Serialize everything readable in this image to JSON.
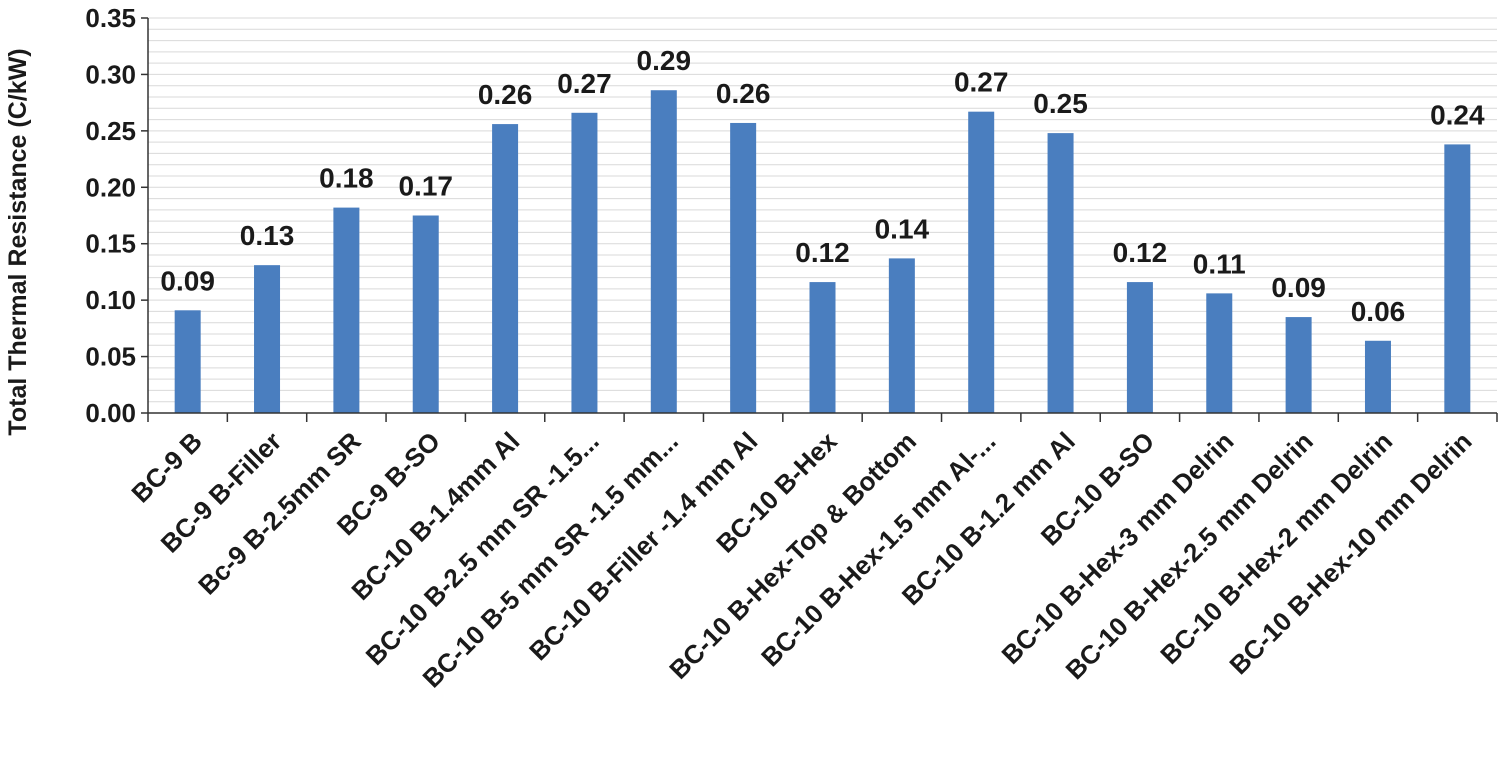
{
  "chart_data": {
    "type": "bar",
    "title": "",
    "xlabel": "",
    "ylabel": "Total Thermal Resistance (C/kW)",
    "ylim": [
      0,
      0.35
    ],
    "yticks": [
      "0.00",
      "0.05",
      "0.10",
      "0.15",
      "0.20",
      "0.25",
      "0.30",
      "0.35"
    ],
    "grid": true,
    "bar_color": "#4a7ebf",
    "categories": [
      "BC-9 B",
      "BC-9 B-Filler",
      "Bc-9 B-2.5mm SR",
      "BC-9 B-SO",
      "BC-10 B-1.4mm Al",
      "BC-10 B-2.5 mm SR -1.5...",
      "BC-10 B-5 mm SR -1.5 mm...",
      "BC-10 B-Filler -1.4 mm Al",
      "BC-10 B-Hex",
      "BC-10 B-Hex-Top & Bottom",
      "BC-10 B-Hex-1.5 mm Al-...",
      "BC-10 B-1.2 mm Al",
      "BC-10 B-SO",
      "BC-10 B-Hex-3 mm Delrin",
      "BC-10 B-Hex-2.5 mm Delrin",
      "BC-10 B-Hex-2 mm Delrin",
      "BC-10 B-Hex-10 mm Delrin"
    ],
    "values": [
      0.091,
      0.131,
      0.182,
      0.175,
      0.256,
      0.266,
      0.286,
      0.257,
      0.116,
      0.137,
      0.267,
      0.248,
      0.116,
      0.106,
      0.085,
      0.064,
      0.238
    ],
    "data_labels": [
      "0.09",
      "0.13",
      "0.18",
      "0.17",
      "0.26",
      "0.27",
      "0.29",
      "0.26",
      "0.12",
      "0.14",
      "0.27",
      "0.25",
      "0.12",
      "0.11",
      "0.09",
      "0.06",
      "0.24"
    ]
  }
}
